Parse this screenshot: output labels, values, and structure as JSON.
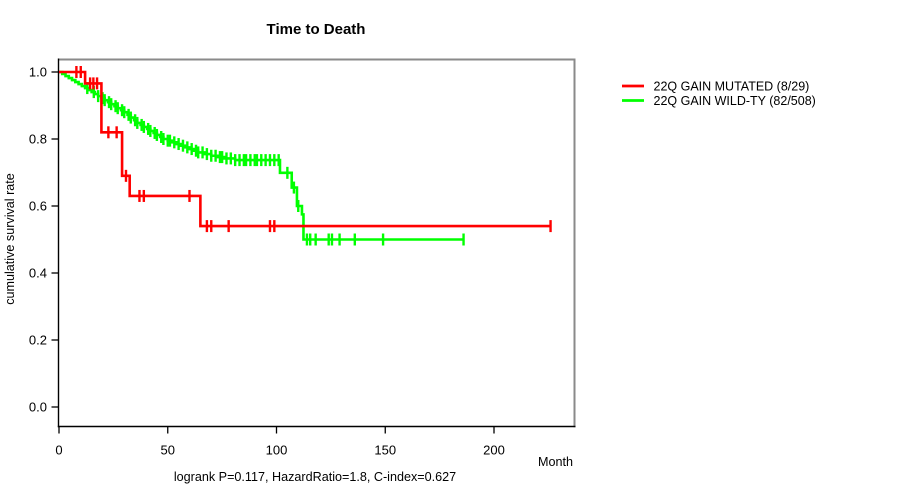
{
  "chart_data": {
    "type": "line",
    "subtype": "kaplan-meier-step",
    "title": "Time to Death",
    "xlabel": "Month",
    "ylabel": "cumulative survival rate",
    "footnote": "logrank P=0.117, HazardRatio=1.8, C-index=0.627",
    "xlim": [
      0,
      237
    ],
    "ylim": [
      0,
      1
    ],
    "x_ticks": [
      0,
      50,
      100,
      150,
      200
    ],
    "y_ticks": [
      0,
      0.2,
      0.4,
      0.6,
      0.8,
      1
    ],
    "grid": false,
    "legend_position": "right-of-plot",
    "box_color": "#8a8a8a",
    "axis_color": "#000000",
    "series": [
      {
        "name": "22Q GAIN MUTATED (8/29)",
        "color": "#ff0000",
        "steps": [
          [
            0,
            1.0
          ],
          [
            12,
            0.966
          ],
          [
            19.5,
            0.82
          ],
          [
            29,
            0.69
          ],
          [
            32.5,
            0.63
          ],
          [
            65,
            0.54
          ]
        ],
        "end_month": 226,
        "censor_months": [
          8,
          10,
          14.3,
          15.8,
          17.5,
          22.7,
          26.5,
          30.8,
          37,
          39,
          60,
          68,
          70,
          78,
          97,
          99,
          226
        ]
      },
      {
        "name": "22Q GAIN WILD-TY (82/508)",
        "color": "#00ff00",
        "steps": [
          [
            0,
            1.0
          ],
          [
            1.5,
            0.994
          ],
          [
            3,
            0.988
          ],
          [
            4.5,
            0.982
          ],
          [
            6,
            0.976
          ],
          [
            7.5,
            0.97
          ],
          [
            9,
            0.964
          ],
          [
            10.5,
            0.958
          ],
          [
            12,
            0.952
          ],
          [
            13.5,
            0.946
          ],
          [
            15,
            0.94
          ],
          [
            16.5,
            0.934
          ],
          [
            18,
            0.928
          ],
          [
            19.5,
            0.922
          ],
          [
            21,
            0.916
          ],
          [
            22.5,
            0.91
          ],
          [
            24,
            0.904
          ],
          [
            25.5,
            0.898
          ],
          [
            27,
            0.892
          ],
          [
            28.5,
            0.886
          ],
          [
            30,
            0.88
          ],
          [
            31.5,
            0.872
          ],
          [
            33,
            0.864
          ],
          [
            34.5,
            0.856
          ],
          [
            36,
            0.848
          ],
          [
            37.5,
            0.842
          ],
          [
            39,
            0.836
          ],
          [
            40.5,
            0.83
          ],
          [
            42,
            0.824
          ],
          [
            43.5,
            0.818
          ],
          [
            45,
            0.812
          ],
          [
            46.5,
            0.806
          ],
          [
            48,
            0.8
          ],
          [
            50,
            0.795
          ],
          [
            52,
            0.79
          ],
          [
            54,
            0.785
          ],
          [
            56,
            0.78
          ],
          [
            58,
            0.775
          ],
          [
            60,
            0.77
          ],
          [
            62,
            0.765
          ],
          [
            64,
            0.76
          ],
          [
            67,
            0.755
          ],
          [
            70,
            0.75
          ],
          [
            73,
            0.746
          ],
          [
            76,
            0.742
          ],
          [
            81,
            0.737
          ],
          [
            101.6,
            0.699
          ],
          [
            107,
            0.655
          ],
          [
            109.4,
            0.6
          ],
          [
            111.7,
            0.575
          ],
          [
            112.4,
            0.5
          ]
        ],
        "end_month": 186,
        "censor_months": [
          13,
          16,
          18,
          20,
          21,
          23,
          24,
          26,
          27,
          29,
          30,
          32,
          33,
          35,
          36,
          38,
          39,
          41,
          42,
          44,
          45,
          47,
          48,
          50,
          51,
          53,
          55,
          57,
          59,
          61,
          63,
          64,
          66,
          68,
          70,
          72,
          74,
          75,
          77,
          79,
          81,
          83,
          85,
          86,
          88,
          90,
          91,
          93,
          95,
          97,
          99,
          101,
          105,
          108,
          110,
          114,
          115.5,
          118,
          124,
          125.5,
          129,
          136,
          149,
          186
        ]
      }
    ]
  }
}
